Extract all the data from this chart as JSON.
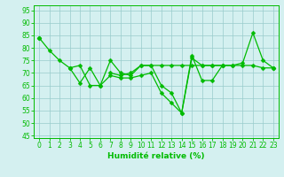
{
  "x": [
    0,
    1,
    2,
    3,
    4,
    5,
    6,
    7,
    8,
    9,
    10,
    11,
    12,
    13,
    14,
    15,
    16,
    17,
    18,
    19,
    20,
    21,
    22,
    23
  ],
  "series1": [
    84,
    79,
    75,
    72,
    66,
    72,
    65,
    75,
    70,
    69,
    73,
    73,
    65,
    62,
    54,
    76,
    73,
    73,
    73,
    73,
    74,
    86,
    75,
    72
  ],
  "series2": [
    84,
    null,
    null,
    72,
    73,
    65,
    65,
    69,
    68,
    68,
    69,
    70,
    62,
    58,
    54,
    77,
    67,
    67,
    73,
    null,
    null,
    null,
    null,
    72
  ],
  "series3": [
    84,
    null,
    null,
    72,
    null,
    null,
    null,
    70,
    69,
    70,
    73,
    73,
    73,
    73,
    73,
    73,
    73,
    73,
    73,
    73,
    73,
    73,
    72,
    72
  ],
  "line_color": "#00bb00",
  "bg_color": "#d4f0f0",
  "grid_color": "#99cccc",
  "xlabel": "Humidité relative (%)",
  "xlim": [
    -0.5,
    23.5
  ],
  "ylim": [
    44,
    97
  ],
  "yticks": [
    45,
    50,
    55,
    60,
    65,
    70,
    75,
    80,
    85,
    90,
    95
  ],
  "xticks": [
    0,
    1,
    2,
    3,
    4,
    5,
    6,
    7,
    8,
    9,
    10,
    11,
    12,
    13,
    14,
    15,
    16,
    17,
    18,
    19,
    20,
    21,
    22,
    23
  ]
}
